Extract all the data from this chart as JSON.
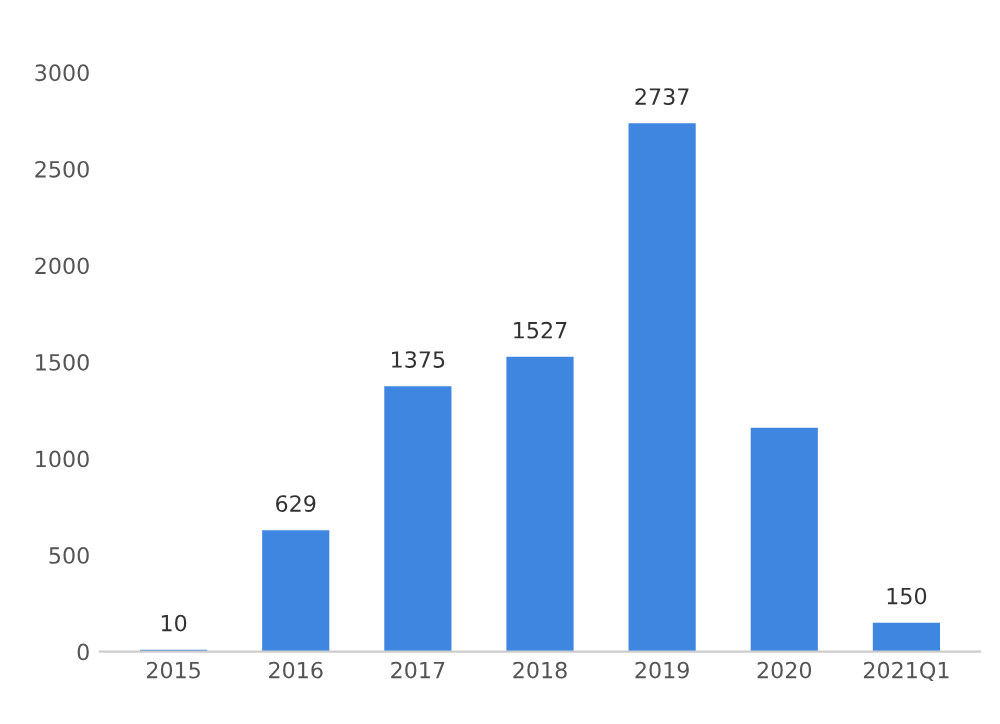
{
  "chart_data": {
    "type": "bar",
    "categories": [
      "2015",
      "2016",
      "2017",
      "2018",
      "2019",
      "2020",
      "2021Q1"
    ],
    "values": [
      10,
      629,
      1375,
      1527,
      2737,
      1160,
      150
    ],
    "value_labels": [
      "10",
      "629",
      "1375",
      "1527",
      "2737",
      null,
      "150"
    ],
    "color": "#3f86e0",
    "ylim": [
      0,
      3000
    ],
    "yticks": [
      0,
      500,
      1000,
      1500,
      2000,
      2500,
      3000
    ],
    "grid": false
  }
}
